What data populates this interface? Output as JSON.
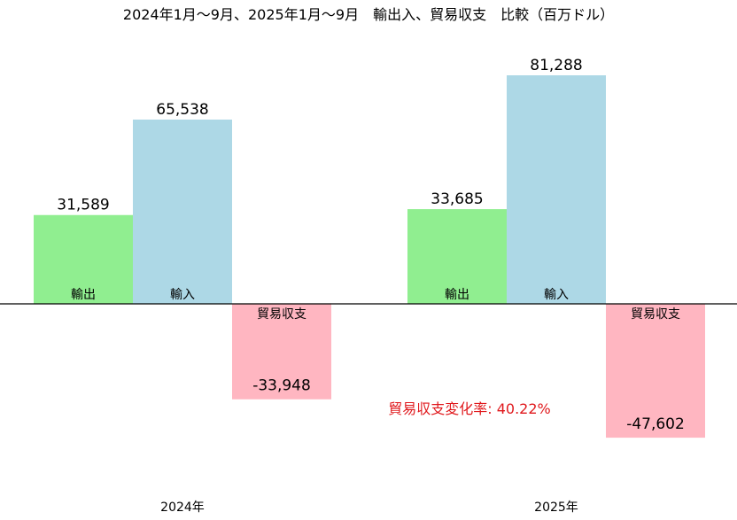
{
  "chart_data": {
    "type": "bar",
    "title": "2024年1月～9月、2025年1月～9月　輸出入、貿易収支　比較（百万ドル）",
    "categories": [
      "2024年",
      "2025年"
    ],
    "series": [
      {
        "name": "輸出",
        "values": [
          31589,
          33685
        ],
        "labels": [
          "31,589",
          "33,685"
        ],
        "color": "#90ee90"
      },
      {
        "name": "輸入",
        "values": [
          65538,
          81288
        ],
        "labels": [
          "65,538",
          "81,288"
        ],
        "color": "#add8e6"
      },
      {
        "name": "貿易収支",
        "values": [
          -33948,
          -47602
        ],
        "labels": [
          "-33,948",
          "-47,602"
        ],
        "color": "#ffb6c1"
      }
    ],
    "annotation": {
      "text": "貿易収支変化率: 40.22%",
      "color": "#e0191d"
    },
    "xlabel": "",
    "ylabel": "",
    "ylim": [
      -57000,
      95000
    ],
    "grid": false,
    "legend": "none"
  }
}
